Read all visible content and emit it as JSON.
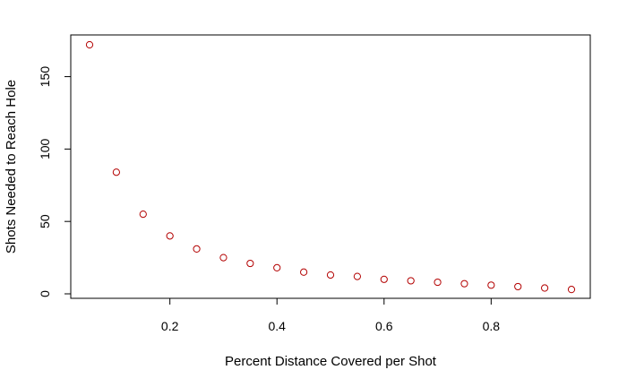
{
  "chart_data": {
    "type": "scatter",
    "title": "",
    "xlabel": "Percent Distance Covered per Shot",
    "ylabel": "Shots Needed to Reach Hole",
    "xlim": [
      0.05,
      0.95
    ],
    "ylim": [
      0,
      172
    ],
    "x_ticks": [
      0.2,
      0.4,
      0.6,
      0.8
    ],
    "x_tick_labels": [
      "0.2",
      "0.4",
      "0.6",
      "0.8"
    ],
    "y_ticks": [
      0,
      50,
      100,
      150
    ],
    "y_tick_labels": [
      "0",
      "50",
      "100",
      "150"
    ],
    "grid": false,
    "point_color": "#b30000",
    "marker": "open-circle",
    "series": [
      {
        "x": [
          0.05,
          0.1,
          0.15,
          0.2,
          0.25,
          0.3,
          0.35,
          0.4,
          0.45,
          0.5,
          0.55,
          0.6,
          0.65,
          0.7,
          0.75,
          0.8,
          0.85,
          0.9,
          0.95
        ],
        "y": [
          172,
          84,
          55,
          40,
          31,
          25,
          21,
          18,
          15,
          13,
          12,
          10,
          9,
          8,
          7,
          6,
          5,
          4,
          3
        ]
      }
    ]
  }
}
